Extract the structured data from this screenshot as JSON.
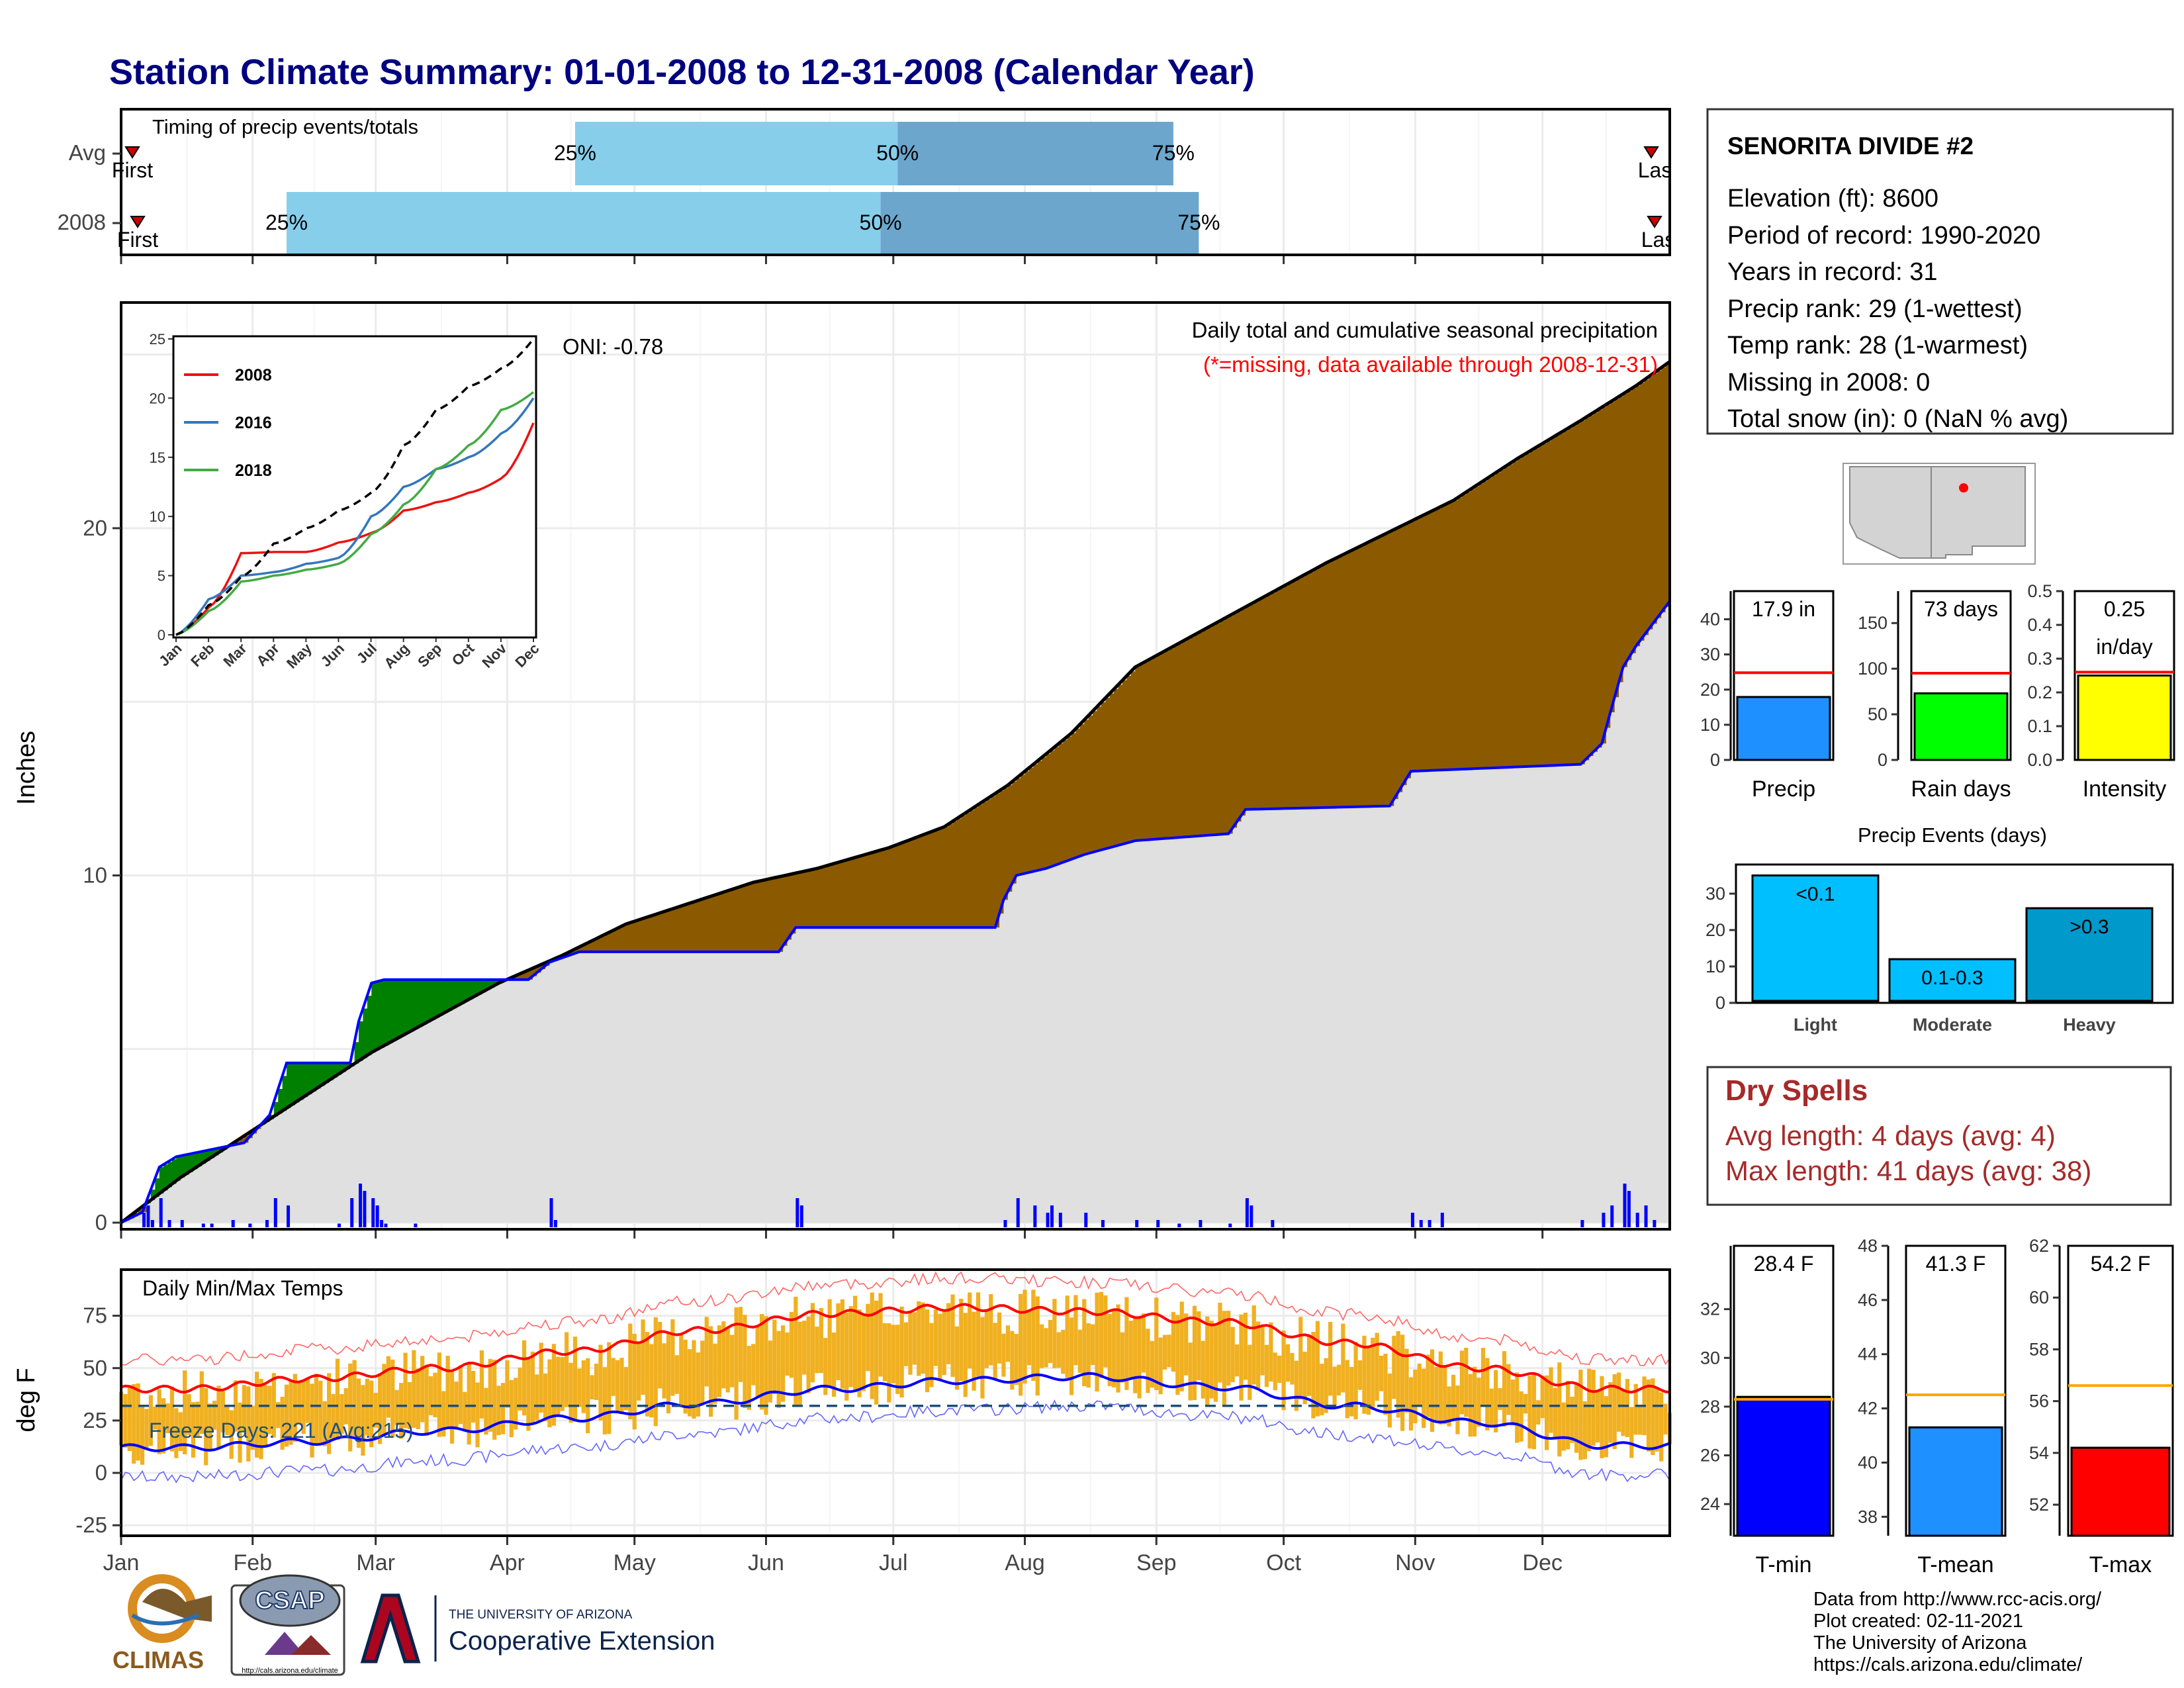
{
  "title": "Station Climate Summary: 01-01-2008 to 12-31-2008 (Calendar Year)",
  "colors": {
    "title": "#000080",
    "cum_2008": "#8B5A00",
    "cum_deficit": "#008000",
    "avg_line": "#0000FF",
    "avg_fill": "#E0E0E0",
    "daily_bar": "#0000FF",
    "timing_light": "#87CEEB",
    "timing_dark": "#6CA6CD",
    "temp_bar": "#F0B020",
    "tmax_avg": "#FF0000",
    "tmin_avg": "#0000FF",
    "freeze_line": "#1F4E79",
    "precip_bar": "#1E90FF",
    "rain_bar": "#00FF00",
    "intensity_bar": "#FFFF00",
    "event_bar": "#00BFFF",
    "event_dark": "#0099CC",
    "tmin_bar": "#0000FF",
    "tmean_bar": "#1E90FF",
    "tmax_bar": "#FF0000",
    "dry_spells": "#A52A2A"
  },
  "timing": {
    "title": "Timing of precip events/totals",
    "rows": [
      {
        "label": "Avg",
        "first": "First",
        "last": "Last",
        "p25": "25%",
        "p50": "50%",
        "p75": "75%",
        "p25_doy": 108,
        "p50_doy": 184,
        "p75_doy": 249
      },
      {
        "label": "2008",
        "first": "First",
        "last": "Last",
        "p25": "25%",
        "p50": "50%",
        "p75": "75%",
        "p25_doy": 40,
        "p50_doy": 180,
        "p75_doy": 255
      }
    ]
  },
  "main_panel": {
    "ylabel": "Inches",
    "yticks": [
      "0",
      "10",
      "20"
    ],
    "ylim": [
      0,
      26.5
    ],
    "oni": "ONI: -0.78",
    "header": "Daily total and cumulative seasonal precipitation",
    "missing_note": "(*=missing, data available through 2008-12-31)"
  },
  "months": [
    "Jan",
    "Feb",
    "Mar",
    "Apr",
    "May",
    "Jun",
    "Jul",
    "Aug",
    "Sep",
    "Oct",
    "Nov",
    "Dec"
  ],
  "chart_data": [
    {
      "type": "area",
      "name": "cumulative-precip",
      "x_unit": "day of year 2008",
      "ylabel": "Inches",
      "series": [
        {
          "name": "2008 cumulative",
          "points": [
            [
              1,
              0
            ],
            [
              6,
              0.3
            ],
            [
              10,
              1.6
            ],
            [
              14,
              1.9
            ],
            [
              30,
              2.3
            ],
            [
              36,
              3.1
            ],
            [
              40,
              4.6
            ],
            [
              55,
              4.6
            ],
            [
              57,
              5.8
            ],
            [
              60,
              6.9
            ],
            [
              63,
              7.0
            ],
            [
              97,
              7.0
            ],
            [
              102,
              7.5
            ],
            [
              109,
              7.8
            ],
            [
              156,
              7.8
            ],
            [
              160,
              8.5
            ],
            [
              207,
              8.5
            ],
            [
              209,
              9.3
            ],
            [
              212,
              10.0
            ],
            [
              219,
              10.2
            ],
            [
              228,
              10.6
            ],
            [
              240,
              11.0
            ],
            [
              262,
              11.2
            ],
            [
              266,
              11.9
            ],
            [
              300,
              12.0
            ],
            [
              305,
              13.0
            ],
            [
              345,
              13.2
            ],
            [
              350,
              13.8
            ],
            [
              352,
              14.7
            ],
            [
              355,
              16.0
            ],
            [
              358,
              16.6
            ],
            [
              366,
              17.9
            ]
          ]
        },
        {
          "name": "average cumulative",
          "points": [
            [
              1,
              0
            ],
            [
              15,
              1.3
            ],
            [
              30,
              2.5
            ],
            [
              45,
              3.7
            ],
            [
              60,
              4.9
            ],
            [
              75,
              5.9
            ],
            [
              90,
              6.9
            ],
            [
              105,
              7.7
            ],
            [
              120,
              8.6
            ],
            [
              135,
              9.2
            ],
            [
              150,
              9.8
            ],
            [
              165,
              10.2
            ],
            [
              182,
              10.8
            ],
            [
              195,
              11.4
            ],
            [
              210,
              12.6
            ],
            [
              225,
              14.1
            ],
            [
              240,
              16.0
            ],
            [
              255,
              17.0
            ],
            [
              270,
              18.0
            ],
            [
              285,
              19.0
            ],
            [
              300,
              19.9
            ],
            [
              315,
              20.8
            ],
            [
              330,
              22.0
            ],
            [
              345,
              23.1
            ],
            [
              358,
              24.1
            ],
            [
              366,
              24.8
            ]
          ]
        }
      ],
      "daily_totals": [
        [
          6,
          0.2
        ],
        [
          7,
          0.3
        ],
        [
          8,
          0.1
        ],
        [
          10,
          0.4
        ],
        [
          12,
          0.1
        ],
        [
          15,
          0.1
        ],
        [
          20,
          0.05
        ],
        [
          22,
          0.05
        ],
        [
          27,
          0.1
        ],
        [
          31,
          0.05
        ],
        [
          35,
          0.1
        ],
        [
          37,
          0.4
        ],
        [
          40,
          0.3
        ],
        [
          52,
          0.05
        ],
        [
          55,
          0.4
        ],
        [
          57,
          0.6
        ],
        [
          58,
          0.5
        ],
        [
          60,
          0.4
        ],
        [
          61,
          0.3
        ],
        [
          62,
          0.1
        ],
        [
          63,
          0.05
        ],
        [
          70,
          0.05
        ],
        [
          102,
          0.4
        ],
        [
          103,
          0.1
        ],
        [
          160,
          0.4
        ],
        [
          161,
          0.3
        ],
        [
          209,
          0.1
        ],
        [
          212,
          0.4
        ],
        [
          216,
          0.3
        ],
        [
          219,
          0.2
        ],
        [
          220,
          0.3
        ],
        [
          222,
          0.2
        ],
        [
          228,
          0.2
        ],
        [
          232,
          0.1
        ],
        [
          240,
          0.1
        ],
        [
          245,
          0.1
        ],
        [
          250,
          0.05
        ],
        [
          255,
          0.1
        ],
        [
          262,
          0.05
        ],
        [
          266,
          0.4
        ],
        [
          267,
          0.3
        ],
        [
          272,
          0.1
        ],
        [
          305,
          0.2
        ],
        [
          307,
          0.1
        ],
        [
          309,
          0.1
        ],
        [
          312,
          0.2
        ],
        [
          345,
          0.1
        ],
        [
          350,
          0.2
        ],
        [
          352,
          0.3
        ],
        [
          355,
          0.6
        ],
        [
          356,
          0.5
        ],
        [
          358,
          0.2
        ],
        [
          360,
          0.3
        ],
        [
          362,
          0.1
        ]
      ]
    },
    {
      "type": "line",
      "name": "inset-cumulative",
      "x": [
        "Jan",
        "Feb",
        "Mar",
        "Apr",
        "May",
        "Jun",
        "Jul",
        "Aug",
        "Sep",
        "Oct",
        "Nov",
        "Dec"
      ],
      "ylim": [
        0,
        25
      ],
      "yticks": [
        "0",
        "5",
        "10",
        "15",
        "20",
        "25"
      ],
      "series": [
        {
          "name": "2008",
          "color": "#EE1111",
          "values": [
            0,
            2.3,
            6.9,
            7.0,
            7.0,
            7.8,
            8.6,
            10.5,
            11.2,
            12.0,
            13.2,
            17.9
          ]
        },
        {
          "name": "2016",
          "color": "#3377BB",
          "values": [
            0,
            3.0,
            5.0,
            5.3,
            6.0,
            6.5,
            10.0,
            12.5,
            14.0,
            15.0,
            17.0,
            20.0
          ]
        },
        {
          "name": "2018",
          "color": "#44AA44",
          "values": [
            0,
            2.0,
            4.5,
            5.0,
            5.5,
            6.0,
            8.5,
            11.0,
            14.0,
            16.0,
            19.0,
            20.5
          ]
        },
        {
          "name": "avg",
          "color": "#000000",
          "dashed": true,
          "values": [
            0,
            2.5,
            4.9,
            7.7,
            9.0,
            10.5,
            12.0,
            16.0,
            19.0,
            21.0,
            22.5,
            25.0
          ]
        }
      ]
    },
    {
      "type": "bar",
      "name": "daily-temps",
      "title": "Daily Min/Max Temps",
      "ylabel": "deg F",
      "yticks": [
        "-25",
        "0",
        "25",
        "50",
        "75"
      ],
      "ylim": [
        -30,
        97
      ],
      "freeze_days": "Freeze Days: 221 (Avg:215)",
      "freeze_line": 32,
      "monthly_tmin": [
        12,
        15,
        20,
        26,
        33,
        40,
        44,
        46,
        41,
        32,
        24,
        13
      ],
      "monthly_tmax": [
        40,
        45,
        50,
        58,
        68,
        76,
        79,
        77,
        72,
        62,
        50,
        40
      ]
    },
    {
      "type": "bar",
      "name": "precip-total",
      "label": "17.9 in",
      "categories": [
        "Precip"
      ],
      "values": [
        17.9
      ],
      "avg": 24.8,
      "ylim": [
        0,
        48
      ],
      "yticks": [
        "0",
        "10",
        "20",
        "30",
        "40"
      ]
    },
    {
      "type": "bar",
      "name": "rain-days",
      "label": "73 days",
      "categories": [
        "Rain days"
      ],
      "values": [
        73
      ],
      "avg": 95,
      "ylim": [
        0,
        185
      ],
      "yticks": [
        "0",
        "50",
        "100",
        "150"
      ]
    },
    {
      "type": "bar",
      "name": "intensity",
      "label": "0.25",
      "label2": "in/day",
      "categories": [
        "Intensity"
      ],
      "values": [
        0.25
      ],
      "avg": 0.26,
      "ylim": [
        0,
        0.5
      ],
      "yticks": [
        "0.0",
        "0.1",
        "0.2",
        "0.3",
        "0.4",
        "0.5"
      ]
    },
    {
      "type": "bar",
      "name": "precip-events",
      "title": "Precip Events (days)",
      "categories": [
        "Light",
        "Moderate",
        "Heavy"
      ],
      "labels": [
        "<0.1",
        "0.1-0.3",
        ">0.3"
      ],
      "values": [
        35,
        12,
        26
      ],
      "ylim": [
        0,
        38
      ],
      "yticks": [
        "0",
        "10",
        "20",
        "30"
      ]
    },
    {
      "type": "bar",
      "name": "t-min",
      "label": "28.4 F",
      "categories": [
        "T-min"
      ],
      "values": [
        28.4
      ],
      "avg": 28.3,
      "ylim": [
        22.7,
        34.6
      ],
      "yticks": [
        "24",
        "26",
        "28",
        "30",
        "32"
      ]
    },
    {
      "type": "bar",
      "name": "t-mean",
      "label": "41.3 F",
      "categories": [
        "T-mean"
      ],
      "values": [
        41.3
      ],
      "avg": 42.5,
      "ylim": [
        37.3,
        48
      ],
      "yticks": [
        "38",
        "40",
        "42",
        "44",
        "46",
        "48"
      ]
    },
    {
      "type": "bar",
      "name": "t-max",
      "label": "54.2 F",
      "categories": [
        "T-max"
      ],
      "values": [
        54.2
      ],
      "avg": 56.6,
      "ylim": [
        50.8,
        62
      ],
      "yticks": [
        "52",
        "54",
        "56",
        "58",
        "60",
        "62"
      ]
    }
  ],
  "station": {
    "name": "SENORITA DIVIDE #2",
    "lines": [
      "Elevation (ft): 8600",
      "Period of record: 1990-2020",
      "Years in record: 31",
      "Precip rank: 29 (1-wettest)",
      "Temp rank: 28 (1-warmest)",
      "Missing in 2008: 0",
      "Total snow (in): 0 (NaN % avg)"
    ]
  },
  "dry_spells": {
    "title": "Dry Spells",
    "avg": "Avg length: 4 days (avg: 4)",
    "max": "Max length: 41 days (avg: 38)"
  },
  "footer": {
    "lines": [
      "Data from http://www.rcc-acis.org/",
      "Plot created: 02-11-2021",
      "The University of Arizona",
      "https://cals.arizona.edu/climate/"
    ],
    "logos": {
      "climas": "CLIMAS",
      "csap": "CSAP",
      "csap_url": "http://cals.arizona.edu/climate",
      "ua_line1": "THE UNIVERSITY OF ARIZONA",
      "ua_line2": "Cooperative Extension"
    }
  }
}
